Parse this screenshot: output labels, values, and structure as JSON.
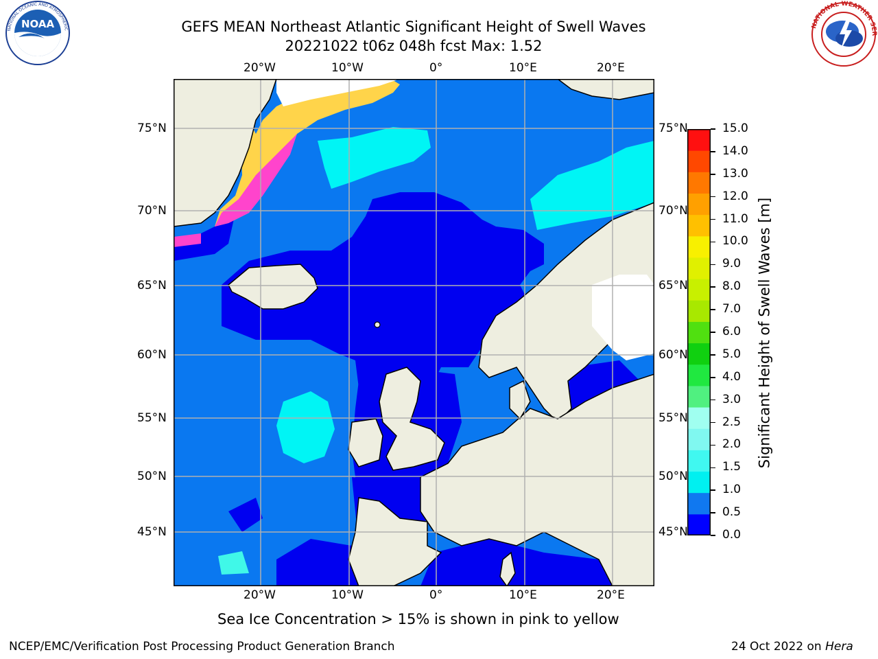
{
  "title": {
    "line1": "GEFS MEAN Northeast Atlantic Significant Height of Swell Waves",
    "line2": "20221022 t06z 048h fcst   Max: 1.52"
  },
  "logos": {
    "left": {
      "name": "NOAA",
      "ring_text": "NATIONAL OCEANIC AND ATMOSPHERIC ADMINISTRATION · U.S. DEPARTMENT OF COMMERCE"
    },
    "right": {
      "name": "NATIONAL WEATHER SERVICE"
    }
  },
  "map": {
    "lon_labels": [
      "20°W",
      "10°W",
      "0°",
      "10°E",
      "20°E"
    ],
    "lat_labels": [
      "75°N",
      "70°N",
      "65°N",
      "60°N",
      "55°N",
      "50°N",
      "45°N"
    ],
    "colors": {
      "land": "#eeeee0",
      "swell_0_05": "#0000f0",
      "swell_05_10": "#0a78f0",
      "swell_10_15": "#00f5f5",
      "swell_15_20": "#40f8e8",
      "ice_pink": "#ff44cc",
      "ice_yellow": "#ffd44a",
      "grid": "#b0b0b0"
    }
  },
  "colorbar": {
    "label": "Significant Height of Swell Waves [m]",
    "ticks": [
      "0.0",
      "0.5",
      "1.0",
      "1.5",
      "2.0",
      "2.5",
      "3.0",
      "4.0",
      "5.0",
      "6.0",
      "7.0",
      "8.0",
      "9.0",
      "10.0",
      "11.0",
      "12.0",
      "13.0",
      "14.0",
      "15.0"
    ],
    "colors": [
      "#0000ff",
      "#1078f0",
      "#00f0f0",
      "#40f8f0",
      "#80f8f0",
      "#a0fff0",
      "#50f080",
      "#20e840",
      "#10d010",
      "#50e010",
      "#a8e800",
      "#c8f000",
      "#e0f000",
      "#f8f000",
      "#ffc000",
      "#ffa000",
      "#ff7800",
      "#ff4800",
      "#ff1010"
    ]
  },
  "notes": {
    "ice": "Sea Ice Concentration > 15% is shown in pink to yellow",
    "credit": "NCEP/EMC/Verification Post Processing Product Generation Branch",
    "date": "24 Oct 2022 on",
    "machine": "Hera"
  }
}
